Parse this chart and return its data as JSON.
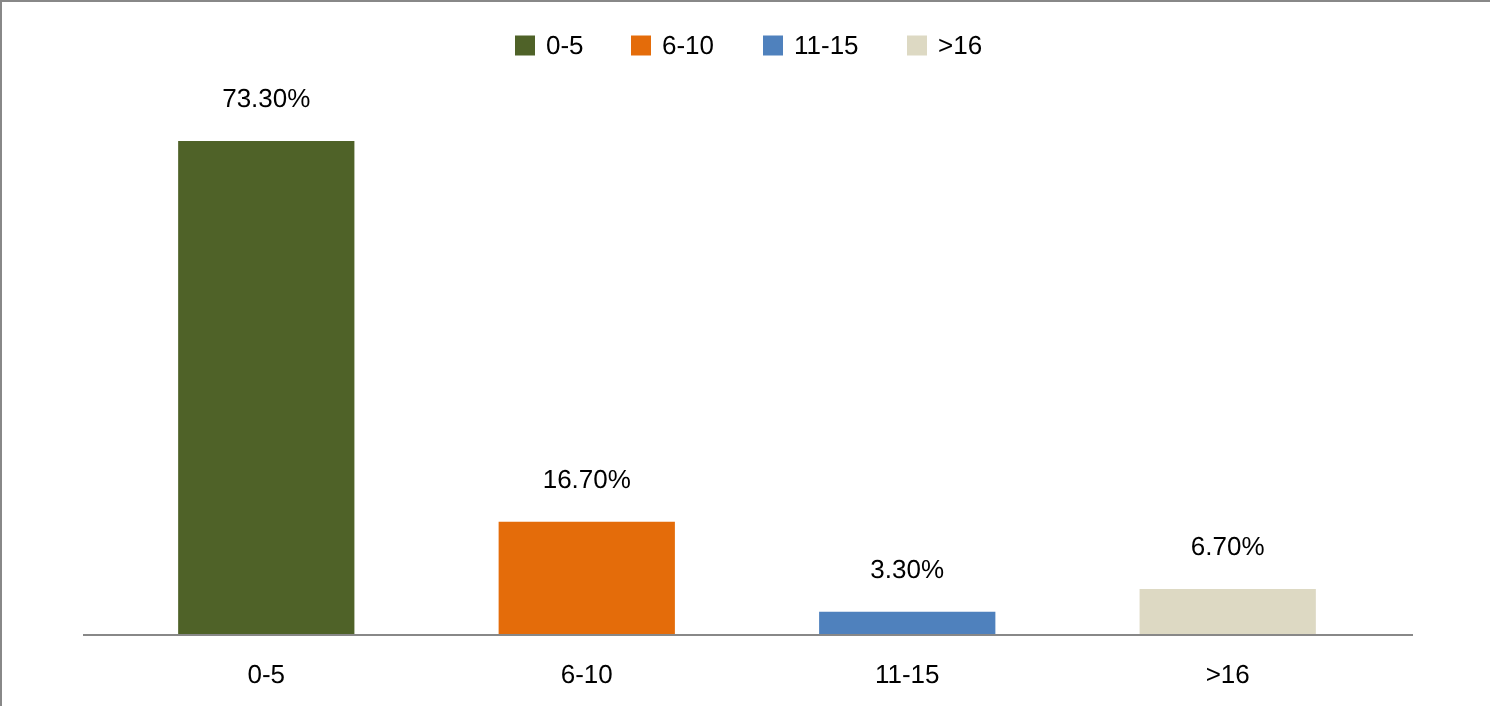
{
  "chart_data": {
    "type": "bar",
    "categories": [
      "0-5",
      "6-10",
      "11-15",
      ">16"
    ],
    "series": [
      {
        "name": "0-5",
        "color": "#4f6228",
        "values": [
          73.3,
          null,
          null,
          null
        ],
        "value_labels": [
          "73.30%",
          null,
          null,
          null
        ]
      },
      {
        "name": "6-10",
        "color": "#e46c0a",
        "values": [
          null,
          16.7,
          null,
          null
        ],
        "value_labels": [
          null,
          "16.70%",
          null,
          null
        ]
      },
      {
        "name": "11-15",
        "color": "#4f81bd",
        "values": [
          null,
          null,
          3.3,
          null
        ],
        "value_labels": [
          null,
          null,
          "3.30%",
          null
        ]
      },
      {
        "name": ">16",
        "color": "#ddd9c3",
        "values": [
          null,
          null,
          null,
          6.7
        ],
        "value_labels": [
          null,
          null,
          null,
          "6.70%"
        ]
      }
    ],
    "legend": "top"
  }
}
